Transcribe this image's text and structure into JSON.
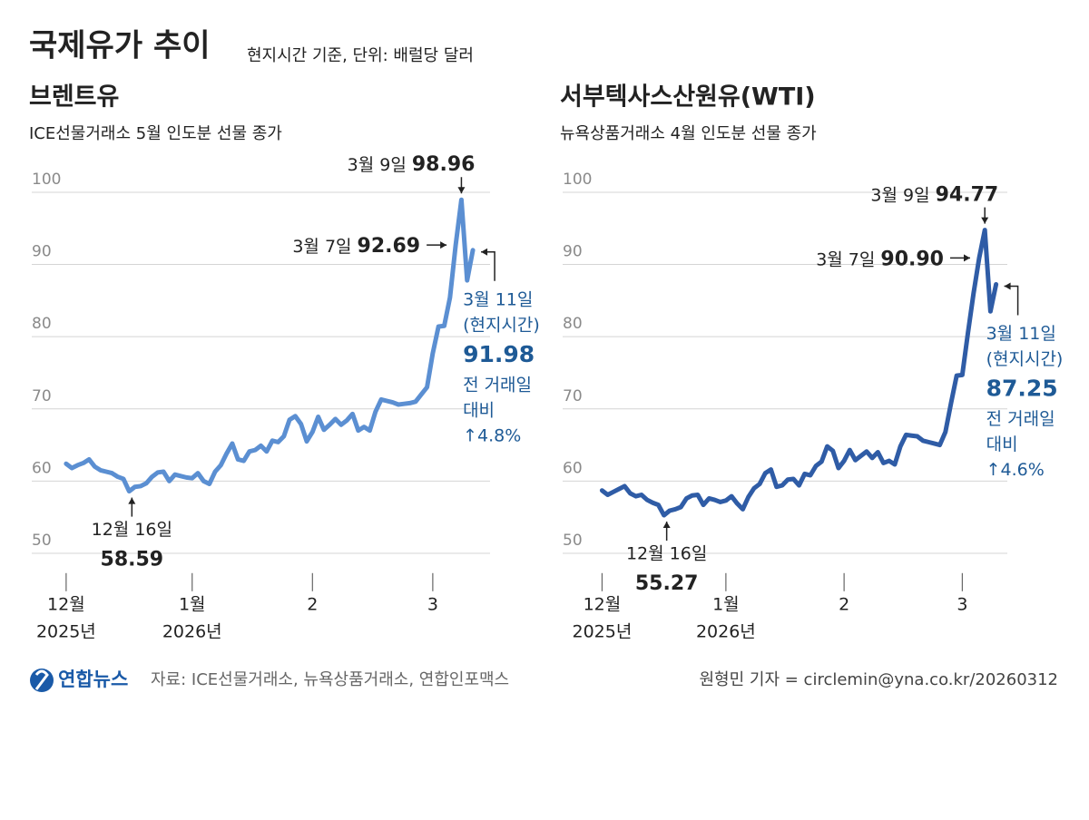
{
  "header": {
    "title": "국제유가 추이",
    "subtitle": "현지시간 기준, 단위: 배럴당 달러"
  },
  "chart_data": [
    {
      "type": "line",
      "title": "브렌트유",
      "subtitle": "ICE선물거래소 5월 인도분 선물 종가",
      "color": "#5b8fd2",
      "values": [
        62.4,
        61.8,
        62.2,
        62.5,
        63.0,
        62.0,
        61.5,
        61.3,
        61.1,
        60.6,
        60.3,
        58.59,
        59.2,
        59.3,
        59.7,
        60.6,
        61.2,
        61.3,
        60.0,
        60.9,
        60.7,
        60.5,
        60.4,
        61.1,
        60.0,
        59.6,
        61.3,
        62.2,
        63.8,
        65.2,
        63.0,
        62.8,
        64.1,
        64.3,
        64.9,
        64.1,
        65.6,
        65.4,
        66.2,
        68.5,
        69.0,
        67.9,
        65.5,
        66.8,
        68.9,
        67.1,
        67.8,
        68.6,
        67.8,
        68.4,
        69.3,
        67.0,
        67.5,
        67.0,
        69.6,
        71.3,
        71.1,
        70.9,
        70.6,
        70.7,
        70.8,
        71.0,
        72.0,
        73.0,
        77.7,
        81.4,
        81.5,
        85.4,
        92.69,
        98.96,
        87.8,
        91.98
      ],
      "xlim": [
        -6,
        74
      ],
      "ylim": [
        46,
        106
      ],
      "yticks": [
        50,
        60,
        70,
        80,
        90,
        100
      ],
      "grid": true,
      "xticks": [
        {
          "value": 0,
          "label": "12월",
          "year": "2025년"
        },
        {
          "value": 22,
          "label": "1월",
          "year": "2026년"
        },
        {
          "value": 43,
          "label": "2"
        },
        {
          "value": 64,
          "label": "3"
        }
      ],
      "annotations": [
        {
          "date": "12월 16일",
          "value": 58.59
        },
        {
          "date": "3월 9일",
          "value": 98.96
        },
        {
          "date": "3월 7일",
          "value": 92.69
        },
        {
          "date": "3월 11일",
          "note": "(현지시간)",
          "value": 91.98,
          "change_note": [
            "전 거래일",
            "대비"
          ],
          "change": "↑4.8%"
        }
      ]
    },
    {
      "type": "line",
      "title": "서부텍사스산원유(WTI)",
      "subtitle": "뉴욕상품거래소 4월 인도분 선물 종가",
      "color": "#2f5ca6",
      "values": [
        58.7,
        58.1,
        58.5,
        58.9,
        59.3,
        58.3,
        57.9,
        58.1,
        57.4,
        57.0,
        56.7,
        55.27,
        55.9,
        56.1,
        56.4,
        57.6,
        58.0,
        58.1,
        56.7,
        57.6,
        57.4,
        57.1,
        57.3,
        57.9,
        56.9,
        56.1,
        57.8,
        59.0,
        59.6,
        61.1,
        61.6,
        59.2,
        59.4,
        60.2,
        60.3,
        59.4,
        61.0,
        60.8,
        62.1,
        62.7,
        64.8,
        64.2,
        61.8,
        62.8,
        64.3,
        62.9,
        63.5,
        64.1,
        63.2,
        64.0,
        62.5,
        62.8,
        62.3,
        64.8,
        66.4,
        66.3,
        66.2,
        65.6,
        65.4,
        65.2,
        65.0,
        66.8,
        70.8,
        74.6,
        74.7,
        80.5,
        86.0,
        90.9,
        94.77,
        83.5,
        87.25
      ],
      "xlim": [
        -7,
        72
      ],
      "ylim": [
        46,
        106
      ],
      "yticks": [
        50,
        60,
        70,
        80,
        90,
        100
      ],
      "grid": true,
      "xticks": [
        {
          "value": 0,
          "label": "12월",
          "year": "2025년"
        },
        {
          "value": 22,
          "label": "1월",
          "year": "2026년"
        },
        {
          "value": 43,
          "label": "2"
        },
        {
          "value": 64,
          "label": "3"
        }
      ],
      "annotations": [
        {
          "date": "12월 16일",
          "value": 55.27
        },
        {
          "date": "3월 9일",
          "value": 94.77
        },
        {
          "date": "3월 7일",
          "value": 90.9,
          "value_label": "90.90"
        },
        {
          "date": "3월 11일",
          "note": "(현지시간)",
          "value": 87.25,
          "change_note": [
            "전 거래일",
            "대비"
          ],
          "change": "↑4.6%"
        }
      ]
    }
  ],
  "footer": {
    "logo": "연합뉴스",
    "source": "자료: ICE선물거래소, 뉴욕상품거래소, 연합인포맥스",
    "credit": "원형민 기자 = circlemin@yna.co.kr/20260312"
  }
}
